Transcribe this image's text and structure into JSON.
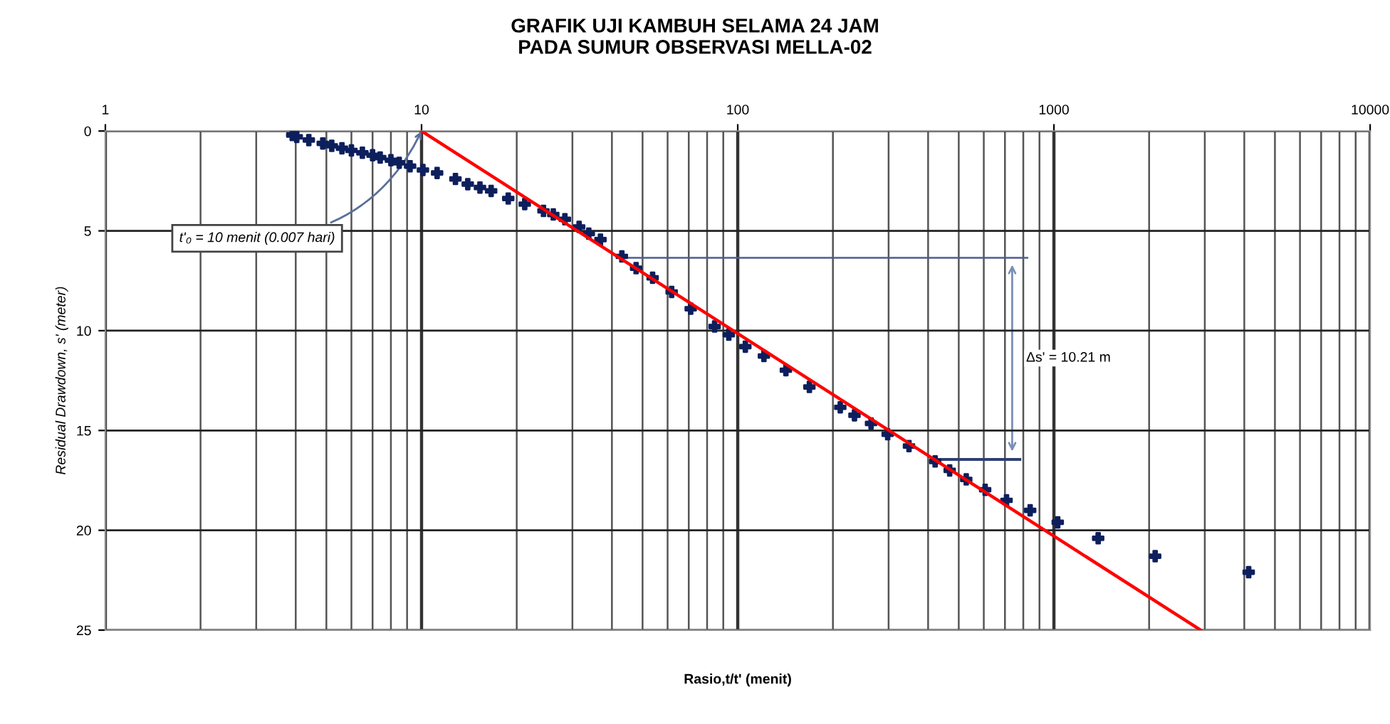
{
  "chart_data": {
    "type": "scatter",
    "title": "GRAFIK UJI KAMBUH SELAMA 24 JAM\nPADA SUMUR OBSERVASI MELLA-02",
    "xlabel": "Rasio,t/t' (menit)",
    "ylabel": "Residual Drawdown, s' (meter)",
    "log": "x",
    "xlim": [
      1,
      10000
    ],
    "xticks": [
      1,
      10,
      100,
      1000,
      10000
    ],
    "ylim": [
      25,
      0
    ],
    "yticks": [
      0,
      5,
      10,
      15,
      20,
      25
    ],
    "grid": true,
    "legend": false,
    "series": [
      {
        "color": "#0d1f5c",
        "marker": "cross",
        "x": [
          3.9,
          4.03,
          4.4,
          4.87,
          5.2,
          5.6,
          6.0,
          6.5,
          7.0,
          7.4,
          8.0,
          8.5,
          9.2,
          10.1,
          11.2,
          12.8,
          14.0,
          15.3,
          16.6,
          18.8,
          21.2,
          24.3,
          26.1,
          28.4,
          31.5,
          33.8,
          36.8,
          43,
          47.7,
          53.8,
          61.8,
          71,
          84.5,
          93.7,
          105.7,
          121,
          142,
          168.5,
          211,
          234,
          264,
          298,
          348,
          421,
          468,
          528,
          606,
          708,
          841,
          1028,
          1380,
          2090,
          4130
        ],
        "values": [
          0.2,
          0.29,
          0.45,
          0.62,
          0.74,
          0.86,
          0.97,
          1.09,
          1.21,
          1.33,
          1.46,
          1.59,
          1.76,
          1.95,
          2.1,
          2.4,
          2.66,
          2.83,
          3.0,
          3.38,
          3.66,
          4.0,
          4.18,
          4.42,
          4.8,
          5.14,
          5.44,
          6.28,
          6.87,
          7.35,
          8.06,
          8.9,
          9.79,
          10.2,
          10.8,
          11.27,
          11.98,
          12.82,
          13.84,
          14.24,
          14.65,
          15.19,
          15.78,
          16.55,
          17.0,
          17.45,
          17.97,
          18.5,
          19.0,
          19.6,
          20.4,
          21.3,
          22.1
        ]
      },
      {
        "type": "line",
        "color": "#ff0000",
        "x": [
          10,
          2911
        ],
        "values": [
          0,
          25
        ]
      }
    ],
    "annotations": [
      {
        "text": "t'₀ = 10 menit (0.007 hari)",
        "x": 10,
        "y": 0
      },
      "Δs' = 10.21 m"
    ]
  }
}
